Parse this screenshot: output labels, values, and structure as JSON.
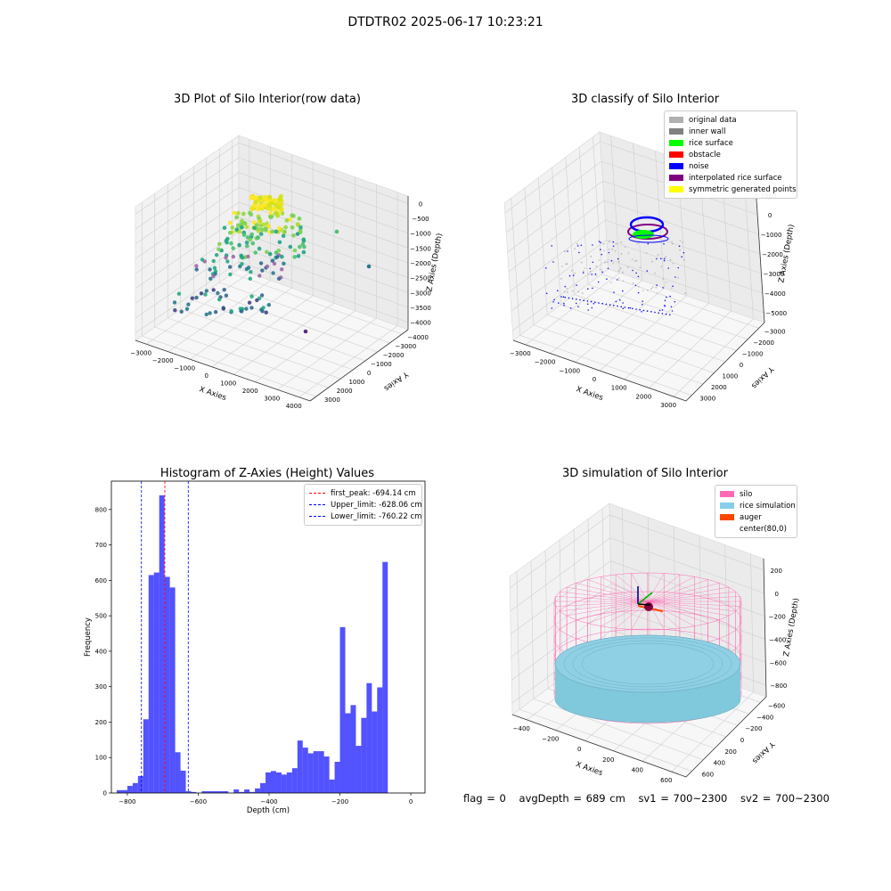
{
  "figure": {
    "suptitle": "DTDTR02 2025-06-17 10:23:21"
  },
  "chart_data": [
    {
      "type": "scatter",
      "panel": "top-left",
      "title": "3D Plot of Silo Interior(row data)",
      "xlabel": "X Axies",
      "ylabel": "Y Axies",
      "zlabel": "Z Axies (Depth)",
      "x_ticks": [
        "−3000",
        "−2000",
        "−1000",
        "0",
        "1000",
        "2000",
        "3000",
        "4000"
      ],
      "y_ticks": [
        "−4000",
        "−3000",
        "−2000",
        "−1000",
        "0",
        "1000",
        "2000",
        "3000"
      ],
      "z_ticks": [
        "0",
        "−500",
        "−1000",
        "−1500",
        "−2000",
        "−2500",
        "−3000",
        "−3500",
        "−4000"
      ],
      "colormap": "viridis",
      "grid": true
    },
    {
      "type": "scatter",
      "panel": "top-right",
      "title": "3D classify of Silo Interior",
      "xlabel": "X Axies",
      "ylabel": "Y Axies",
      "zlabel": "Z Axies (Depth)",
      "x_ticks": [
        "−3000",
        "−2000",
        "−1000",
        "0",
        "1000",
        "2000",
        "3000"
      ],
      "y_ticks": [
        "−3000",
        "−2000",
        "−1000",
        "0",
        "1000",
        "2000",
        "3000"
      ],
      "z_ticks": [
        "1000",
        "0",
        "−1000",
        "−2000",
        "−3000",
        "−4000",
        "−5000"
      ],
      "legend_position": "top-right",
      "legend": [
        {
          "label": "original data",
          "color": "#b0b0b0"
        },
        {
          "label": "inner wall",
          "color": "#808080"
        },
        {
          "label": "rice surface",
          "color": "#00ff00"
        },
        {
          "label": "obstacle",
          "color": "#ff0000"
        },
        {
          "label": "noise",
          "color": "#0000ff"
        },
        {
          "label": "interpolated rice surface",
          "color": "#800080"
        },
        {
          "label": "symmetric generated points",
          "color": "#ffff00"
        }
      ],
      "grid": true
    },
    {
      "type": "bar",
      "panel": "bottom-left",
      "title": "Histogram of Z-Axies (Height) Values",
      "xlabel": "Depth (cm)",
      "ylabel": "Frequency",
      "xlim": [
        -845,
        40
      ],
      "ylim": [
        0,
        880
      ],
      "x_ticks": [
        -800,
        -600,
        -400,
        -200,
        0
      ],
      "y_ticks": [
        0,
        100,
        200,
        300,
        400,
        500,
        600,
        700,
        800
      ],
      "bin_edges_start": -830,
      "bin_width": 15,
      "values": [
        8,
        8,
        20,
        28,
        48,
        208,
        615,
        622,
        840,
        610,
        580,
        115,
        63,
        5,
        3,
        0,
        5,
        5,
        5,
        5,
        5,
        0,
        10,
        3,
        10,
        3,
        13,
        28,
        58,
        62,
        58,
        52,
        58,
        70,
        148,
        128,
        112,
        118,
        118,
        103,
        38,
        88,
        468,
        225,
        248,
        133,
        212,
        310,
        230,
        298,
        652
      ],
      "bar_color": "#0000ff",
      "lines": [
        {
          "label": "first_peak: -694.14 cm",
          "x": -694.14,
          "color": "#ff0000"
        },
        {
          "label": "Upper_limit: -628.06 cm",
          "x": -628.06,
          "color": "#0000ff"
        },
        {
          "label": "Lower_limit: -760.22 cm",
          "x": -760.22,
          "color": "#0000ff"
        }
      ],
      "legend_position": "top-right",
      "grid": false
    },
    {
      "type": "surface",
      "panel": "bottom-right",
      "title": "3D simulation of Silo Interior",
      "xlabel": "X Axies",
      "ylabel": "Y Axies",
      "zlabel": "Z Axies (Depth)",
      "x_ticks": [
        "−400",
        "−200",
        "0",
        "200",
        "400",
        "600"
      ],
      "y_ticks": [
        "−600",
        "−400",
        "−200",
        "0",
        "200",
        "400",
        "600"
      ],
      "z_ticks": [
        "200",
        "0",
        "−200",
        "−400",
        "−600",
        "−800"
      ],
      "legend_position": "top-right",
      "legend": [
        {
          "label": "silo",
          "color": "#ff69b4"
        },
        {
          "label": "rice simulation",
          "color": "#87ceeb"
        },
        {
          "label": "auger",
          "color": "#ff4500"
        },
        {
          "label": "center(80,0)",
          "color": ""
        }
      ],
      "grid": true
    }
  ],
  "status": {
    "flag": "flag = 0",
    "avg_depth": "avgDepth = 689 cm",
    "sv1": "sv1 = 700~2300",
    "sv2": "sv2 = 700~2300"
  }
}
